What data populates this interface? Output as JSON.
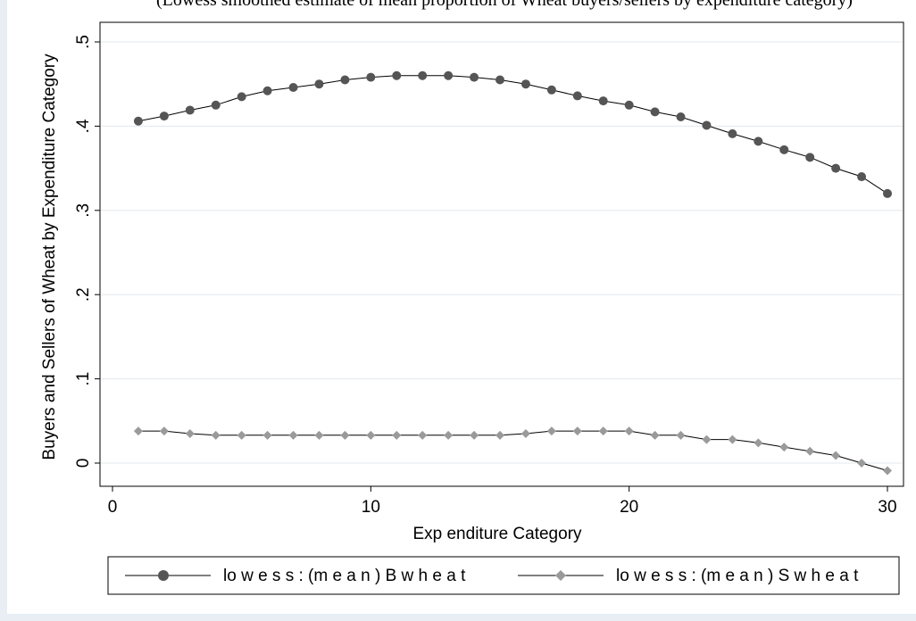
{
  "top_caption": "(Lowess smoothed estimate of mean proportion of Wheat buyers/sellers by expenditure category)",
  "chart_data": {
    "type": "line",
    "xlabel": "Exp enditure Category",
    "ylabel": "Buyers and Sellers of Wheat by Expenditure Category",
    "xlim": [
      0,
      30
    ],
    "ylim": [
      -0.01,
      0.5
    ],
    "xticks": [
      0,
      10,
      20,
      30
    ],
    "xtick_labels": [
      "0",
      "10",
      "20",
      "30"
    ],
    "yticks": [
      0,
      0.1,
      0.2,
      0.3,
      0.4,
      0.5
    ],
    "ytick_labels": [
      "0",
      ".1",
      ".2",
      ".3",
      ".4",
      ".5"
    ],
    "grid": true,
    "legend_position": "bottom",
    "x": [
      1,
      2,
      3,
      4,
      5,
      6,
      7,
      8,
      9,
      10,
      11,
      12,
      13,
      14,
      15,
      16,
      17,
      18,
      19,
      20,
      21,
      22,
      23,
      24,
      25,
      26,
      27,
      28,
      29,
      30
    ],
    "series": [
      {
        "name": "lowess:(mean) Bwheat",
        "label": "lo w e s s : (m e a n ) B w h e a t",
        "marker": "circle",
        "color": "#555555",
        "values": [
          0.406,
          0.412,
          0.419,
          0.425,
          0.435,
          0.442,
          0.446,
          0.45,
          0.455,
          0.458,
          0.46,
          0.46,
          0.46,
          0.458,
          0.455,
          0.45,
          0.443,
          0.436,
          0.43,
          0.425,
          0.417,
          0.411,
          0.401,
          0.391,
          0.382,
          0.372,
          0.363,
          0.35,
          0.34,
          0.32
        ]
      },
      {
        "name": "lowess:(mean) Swheat",
        "label": "lo w e s s : (m e a n ) S w h e a t",
        "marker": "diamond",
        "color": "#9a9a9a",
        "values": [
          0.038,
          0.038,
          0.035,
          0.033,
          0.033,
          0.033,
          0.033,
          0.033,
          0.033,
          0.033,
          0.033,
          0.033,
          0.033,
          0.033,
          0.033,
          0.035,
          0.038,
          0.038,
          0.038,
          0.038,
          0.033,
          0.033,
          0.028,
          0.028,
          0.024,
          0.019,
          0.014,
          0.009,
          0.0,
          -0.009
        ]
      }
    ]
  }
}
